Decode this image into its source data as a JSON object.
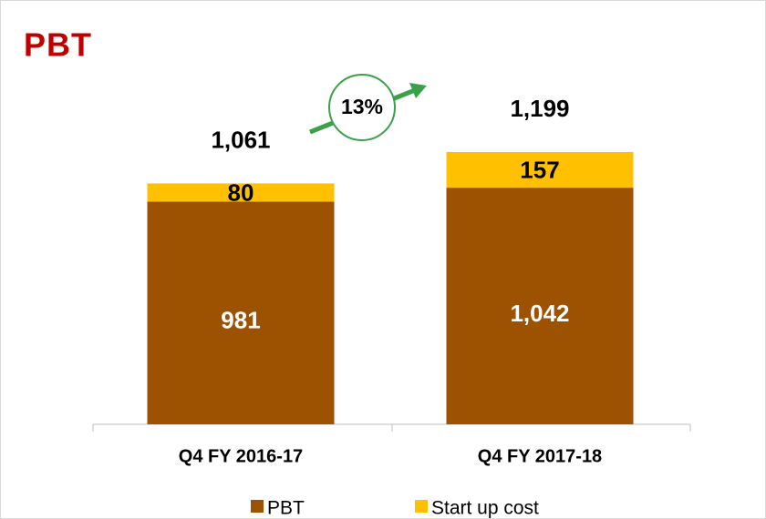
{
  "chart_data": {
    "type": "stacked-bar",
    "title": "PBT",
    "categories": [
      "Q4 FY 2016-17",
      "Q4 FY 2017-18"
    ],
    "series": [
      {
        "name": "PBT",
        "color": "#9c5200",
        "values": [
          981,
          1042
        ],
        "value_labels": [
          "981",
          "1,042"
        ]
      },
      {
        "name": "Start up cost",
        "color": "#ffc000",
        "values": [
          80,
          157
        ]
      }
    ],
    "totals": [
      1061,
      1199
    ],
    "totals_labels": [
      "1,061",
      "1,199"
    ],
    "annotation": "13%",
    "legend": "bottom"
  }
}
